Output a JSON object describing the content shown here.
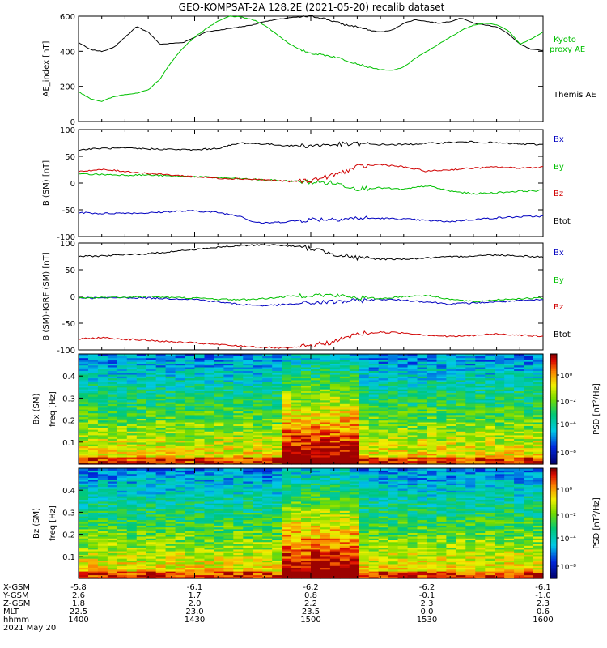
{
  "title": "GEO-KOMPSAT-2A 128.2E (2021-05-20) recalib dataset",
  "x_axis": {
    "ticks": [
      "1400",
      "1430",
      "1500",
      "1530",
      "1600"
    ],
    "rows": [
      {
        "label": "X-GSM",
        "values": [
          "-5.8",
          "-6.1",
          "-6.2",
          "-6.2",
          "-6.1"
        ]
      },
      {
        "label": "Y-GSM",
        "values": [
          "2.6",
          "1.7",
          "0.8",
          "-0.1",
          "-1.0"
        ]
      },
      {
        "label": "Z-GSM",
        "values": [
          "1.8",
          "2.0",
          "2.2",
          "2.3",
          "2.3"
        ]
      },
      {
        "label": "MLT",
        "values": [
          "22.5",
          "23.0",
          "23.5",
          "0.0",
          "0.6"
        ]
      },
      {
        "label": "hhmm",
        "values": [
          "1400",
          "1430",
          "1500",
          "1530",
          "1600"
        ]
      }
    ],
    "date": "2021 May 20"
  },
  "colors": {
    "black": "#000000",
    "green": "#00c000",
    "red": "#d00000",
    "blue": "#0000c0"
  },
  "chart_data": [
    {
      "type": "line",
      "ylabel": "AE_index [nT]",
      "ylim": [
        0,
        600
      ],
      "yticks": [
        0,
        200,
        400,
        600
      ],
      "xlim": [
        14.0,
        16.0
      ],
      "series": [
        {
          "name": "Themis AE",
          "color": "#000000",
          "x": [
            14.0,
            14.05,
            14.1,
            14.15,
            14.2,
            14.25,
            14.3,
            14.35,
            14.4,
            14.45,
            14.5,
            14.55,
            14.6,
            14.65,
            14.7,
            14.75,
            14.8,
            14.85,
            14.9,
            14.95,
            15.0,
            15.05,
            15.1,
            15.15,
            15.2,
            15.25,
            15.3,
            15.35,
            15.4,
            15.45,
            15.5,
            15.55,
            15.6,
            15.65,
            15.7,
            15.75,
            15.8,
            15.85,
            15.9,
            15.95,
            16.0
          ],
          "values": [
            450,
            410,
            400,
            420,
            480,
            540,
            510,
            440,
            445,
            450,
            480,
            510,
            520,
            530,
            540,
            550,
            570,
            580,
            590,
            595,
            600,
            590,
            570,
            550,
            540,
            520,
            510,
            520,
            560,
            580,
            570,
            560,
            570,
            590,
            560,
            550,
            540,
            500,
            440,
            410,
            405
          ]
        },
        {
          "name": "Kyoto proxy AE",
          "color": "#00c000",
          "x": [
            14.0,
            14.05,
            14.1,
            14.15,
            14.2,
            14.25,
            14.3,
            14.35,
            14.4,
            14.45,
            14.5,
            14.55,
            14.6,
            14.65,
            14.7,
            14.75,
            14.8,
            14.85,
            14.9,
            14.95,
            15.0,
            15.05,
            15.1,
            15.15,
            15.2,
            15.25,
            15.3,
            15.35,
            15.4,
            15.45,
            15.5,
            15.55,
            15.6,
            15.65,
            15.7,
            15.75,
            15.8,
            15.85,
            15.9,
            15.95,
            16.0
          ],
          "values": [
            170,
            130,
            115,
            140,
            155,
            160,
            180,
            240,
            340,
            420,
            480,
            530,
            570,
            600,
            595,
            580,
            550,
            500,
            450,
            410,
            390,
            380,
            370,
            350,
            330,
            310,
            295,
            290,
            310,
            360,
            400,
            440,
            480,
            520,
            550,
            560,
            550,
            520,
            440,
            470,
            510
          ]
        }
      ],
      "legend": [
        "Kyoto proxy AE",
        "Themis AE"
      ]
    },
    {
      "type": "line",
      "ylabel": "B (SM) [nT]",
      "ylim": [
        -100,
        100
      ],
      "yticks": [
        -100,
        -50,
        0,
        50,
        100
      ],
      "xlim": [
        14.0,
        16.0
      ],
      "series": [
        {
          "name": "Bx",
          "color": "#0000c0",
          "x": [
            14.0,
            14.1,
            14.2,
            14.3,
            14.4,
            14.5,
            14.6,
            14.7,
            14.75,
            14.8,
            14.9,
            15.0,
            15.1,
            15.2,
            15.3,
            15.4,
            15.5,
            15.6,
            15.7,
            15.8,
            15.9,
            16.0
          ],
          "values": [
            -55,
            -57,
            -56,
            -56,
            -53,
            -52,
            -55,
            -62,
            -72,
            -75,
            -72,
            -68,
            -67,
            -66,
            -66,
            -67,
            -70,
            -72,
            -68,
            -65,
            -63,
            -62
          ]
        },
        {
          "name": "By",
          "color": "#00c000",
          "x": [
            14.0,
            14.1,
            14.2,
            14.3,
            14.4,
            14.5,
            14.6,
            14.7,
            14.8,
            14.9,
            15.0,
            15.1,
            15.2,
            15.3,
            15.4,
            15.5,
            15.6,
            15.7,
            15.8,
            15.9,
            16.0
          ],
          "values": [
            17,
            16,
            15,
            15,
            13,
            12,
            10,
            8,
            6,
            4,
            2,
            0,
            -10,
            -9,
            -12,
            -5,
            -15,
            -20,
            -18,
            -15,
            -14
          ]
        },
        {
          "name": "Bz",
          "color": "#d00000",
          "x": [
            14.0,
            14.1,
            14.2,
            14.3,
            14.4,
            14.5,
            14.6,
            14.7,
            14.8,
            14.9,
            15.0,
            15.1,
            15.2,
            15.3,
            15.4,
            15.5,
            15.6,
            15.7,
            15.8,
            15.9,
            16.0
          ],
          "values": [
            22,
            25,
            22,
            18,
            15,
            12,
            9,
            8,
            6,
            3,
            5,
            15,
            30,
            35,
            30,
            22,
            25,
            28,
            30,
            28,
            30
          ]
        },
        {
          "name": "Btot",
          "color": "#000000",
          "x": [
            14.0,
            14.1,
            14.2,
            14.3,
            14.4,
            14.5,
            14.6,
            14.7,
            14.8,
            14.9,
            15.0,
            15.1,
            15.2,
            15.3,
            15.4,
            15.5,
            15.6,
            15.7,
            15.8,
            15.9,
            16.0
          ],
          "values": [
            62,
            65,
            65,
            64,
            63,
            62,
            65,
            75,
            73,
            70,
            70,
            72,
            73,
            72,
            72,
            74,
            76,
            77,
            75,
            73,
            72
          ]
        }
      ],
      "legend": [
        "Bx",
        "By",
        "Bz",
        "Btot"
      ]
    },
    {
      "type": "line",
      "ylabel": "B (SM)-IGRF (SM) [nT]",
      "ylim": [
        -100,
        100
      ],
      "yticks": [
        -100,
        -50,
        0,
        50,
        100
      ],
      "xlim": [
        14.0,
        16.0
      ],
      "series": [
        {
          "name": "Bx",
          "color": "#0000c0",
          "x": [
            14.0,
            14.1,
            14.2,
            14.3,
            14.4,
            14.5,
            14.6,
            14.7,
            14.8,
            14.9,
            15.0,
            15.1,
            15.2,
            15.3,
            15.4,
            15.5,
            15.6,
            15.7,
            15.8,
            15.9,
            16.0
          ],
          "values": [
            -2,
            -3,
            -2,
            -3,
            -4,
            -5,
            -10,
            -15,
            -17,
            -15,
            -12,
            -10,
            -8,
            -5,
            -7,
            -10,
            -14,
            -12,
            -10,
            -8,
            -6
          ]
        },
        {
          "name": "By",
          "color": "#00c000",
          "x": [
            14.0,
            14.1,
            14.2,
            14.3,
            14.4,
            14.5,
            14.6,
            14.7,
            14.8,
            14.9,
            15.0,
            15.1,
            15.2,
            15.3,
            15.4,
            15.5,
            15.6,
            15.7,
            15.8,
            15.9,
            16.0
          ],
          "values": [
            -3,
            -2,
            -1,
            0,
            -2,
            -3,
            -5,
            -6,
            -4,
            0,
            3,
            2,
            -2,
            -4,
            0,
            2,
            -5,
            -10,
            -6,
            -4,
            -3
          ]
        },
        {
          "name": "Bz",
          "color": "#d00000",
          "x": [
            14.0,
            14.1,
            14.2,
            14.3,
            14.4,
            14.5,
            14.6,
            14.7,
            14.8,
            14.9,
            15.0,
            15.1,
            15.2,
            15.3,
            15.4,
            15.5,
            15.6,
            15.7,
            15.8,
            15.9,
            16.0
          ],
          "values": [
            -80,
            -77,
            -80,
            -82,
            -85,
            -87,
            -90,
            -93,
            -95,
            -97,
            -92,
            -85,
            -70,
            -67,
            -68,
            -72,
            -75,
            -73,
            -70,
            -72,
            -75
          ]
        },
        {
          "name": "Btot",
          "color": "#000000",
          "x": [
            14.0,
            14.1,
            14.2,
            14.3,
            14.4,
            14.5,
            14.6,
            14.7,
            14.8,
            14.9,
            15.0,
            15.1,
            15.2,
            15.3,
            15.4,
            15.5,
            15.6,
            15.7,
            15.8,
            15.9,
            16.0
          ],
          "values": [
            75,
            76,
            78,
            80,
            84,
            88,
            92,
            95,
            97,
            95,
            90,
            80,
            72,
            70,
            70,
            72,
            74,
            76,
            78,
            76,
            74
          ]
        }
      ],
      "legend": [
        "Bx",
        "By",
        "Bz",
        "Btot"
      ]
    },
    {
      "type": "heatmap",
      "ylabel": "Bx (SM) freq [Hz]",
      "yticks": [
        0.1,
        0.2,
        0.3,
        0.4
      ],
      "ylim": [
        0,
        0.5
      ],
      "colorbar": {
        "label": "PSD [nT²/Hz]",
        "ticks": [
          "10⁰",
          "10⁻²",
          "10⁻⁴",
          "10⁻⁸"
        ]
      },
      "xlim": [
        14.0,
        16.0
      ]
    },
    {
      "type": "heatmap",
      "ylabel": "Bz (SM) freq [Hz]",
      "yticks": [
        0.1,
        0.2,
        0.3,
        0.4
      ],
      "ylim": [
        0,
        0.5
      ],
      "colorbar": {
        "label": "PSD [nT²/Hz]",
        "ticks": [
          "10⁰",
          "10⁻²",
          "10⁻⁴",
          "10⁻⁸"
        ]
      },
      "xlim": [
        14.0,
        16.0
      ]
    }
  ]
}
